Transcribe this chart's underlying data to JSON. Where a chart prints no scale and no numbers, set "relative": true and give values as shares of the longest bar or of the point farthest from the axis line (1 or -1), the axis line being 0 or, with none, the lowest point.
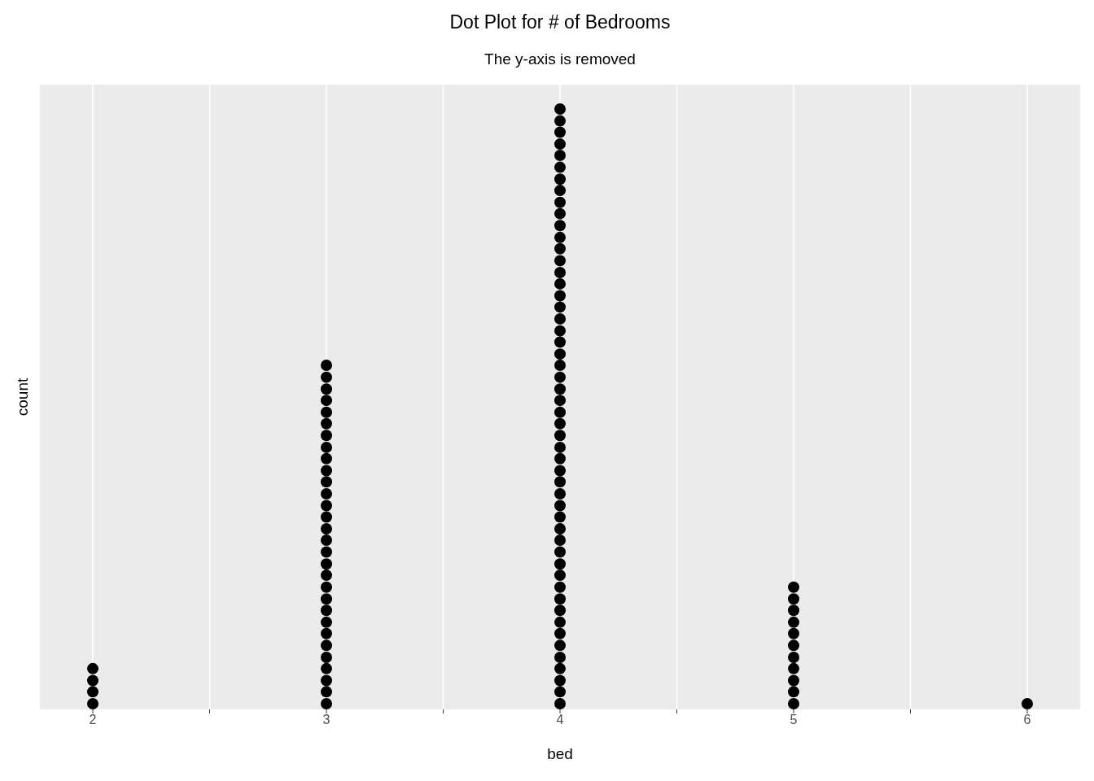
{
  "chart_data": {
    "type": "scatter",
    "title": "Dot Plot for # of Bedrooms",
    "subtitle": "The y-axis is removed",
    "xlabel": "bed",
    "ylabel": "count",
    "x": [
      2,
      2,
      2,
      2,
      3,
      3,
      3,
      3,
      3,
      3,
      3,
      3,
      3,
      3,
      3,
      3,
      3,
      3,
      3,
      3,
      3,
      3,
      3,
      3,
      3,
      3,
      3,
      3,
      3,
      3,
      3,
      3,
      3,
      3,
      4,
      4,
      4,
      4,
      4,
      4,
      4,
      4,
      4,
      4,
      4,
      4,
      4,
      4,
      4,
      4,
      4,
      4,
      4,
      4,
      4,
      4,
      4,
      4,
      4,
      4,
      4,
      4,
      4,
      4,
      4,
      4,
      4,
      4,
      4,
      4,
      4,
      4,
      4,
      4,
      4,
      4,
      4,
      4,
      4,
      4,
      4,
      4,
      4,
      4,
      4,
      4,
      5,
      5,
      5,
      5,
      5,
      5,
      5,
      5,
      5,
      5,
      5,
      6
    ],
    "series": [
      {
        "color": "#000000",
        "values": [
          0,
          0.02,
          0.039,
          0.059,
          0,
          0.02,
          0.039,
          0.059,
          0.078,
          0.098,
          0.118,
          0.137,
          0.157,
          0.176,
          0.196,
          0.216,
          0.235,
          0.255,
          0.275,
          0.294,
          0.314,
          0.333,
          0.353,
          0.373,
          0.392,
          0.412,
          0.431,
          0.451,
          0.471,
          0.49,
          0.51,
          0.529,
          0.549,
          0.569,
          0,
          0.02,
          0.039,
          0.059,
          0.078,
          0.098,
          0.118,
          0.137,
          0.157,
          0.176,
          0.196,
          0.216,
          0.235,
          0.255,
          0.275,
          0.294,
          0.314,
          0.333,
          0.353,
          0.373,
          0.392,
          0.412,
          0.431,
          0.451,
          0.471,
          0.49,
          0.51,
          0.529,
          0.549,
          0.569,
          0.588,
          0.608,
          0.627,
          0.647,
          0.667,
          0.686,
          0.706,
          0.725,
          0.745,
          0.765,
          0.784,
          0.804,
          0.824,
          0.843,
          0.863,
          0.882,
          0.902,
          0.922,
          0.941,
          0.961,
          0.98,
          1,
          0,
          0.02,
          0.039,
          0.059,
          0.078,
          0.098,
          0.118,
          0.137,
          0.157,
          0.176,
          0.196,
          0
        ]
      }
    ],
    "relative": true,
    "xlim": [
      1.77,
      6.23
    ],
    "xticks": [
      2,
      {
        "value": 2.5,
        "label": null
      },
      3,
      {
        "value": 3.5,
        "label": null
      },
      4,
      {
        "value": 4.5,
        "label": null
      },
      5,
      {
        "value": 5.5,
        "label": null
      },
      6
    ],
    "tick_labels": "x",
    "grid": "x",
    "marker": "circle"
  }
}
